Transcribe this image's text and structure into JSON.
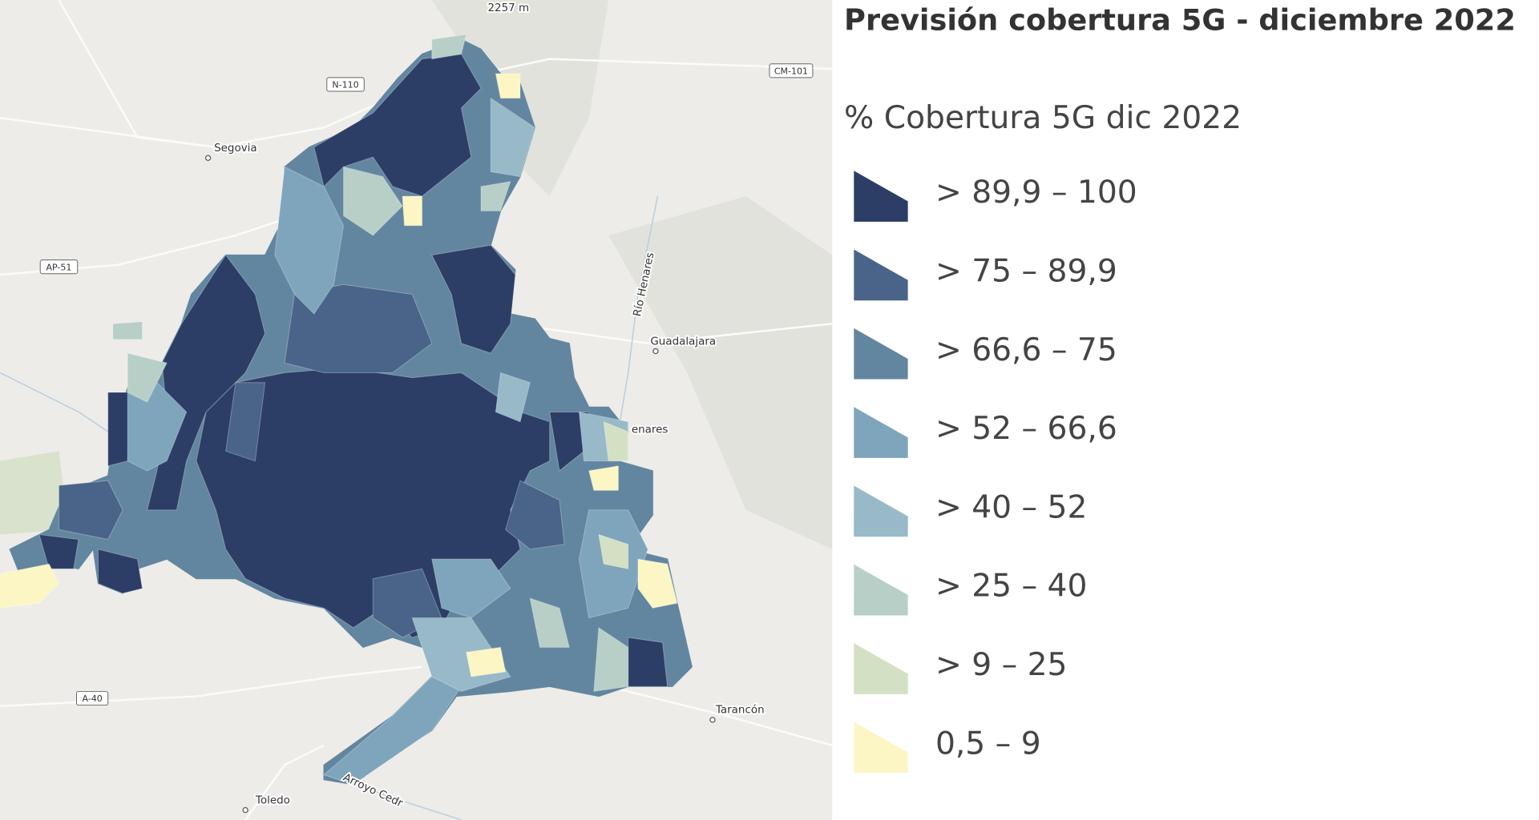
{
  "map": {
    "labels": [
      {
        "text": "2257 m"
      },
      {
        "text": "N-110"
      },
      {
        "text": "CM-101"
      },
      {
        "text": "Segovia"
      },
      {
        "text": "AP-51"
      },
      {
        "text": "Guadalajara"
      },
      {
        "text": "Río Henares"
      },
      {
        "text": "enares"
      },
      {
        "text": "A-40"
      },
      {
        "text": "Tarancón"
      },
      {
        "text": "Toledo"
      },
      {
        "text": "Arroyo Cedr"
      }
    ]
  },
  "legend": {
    "title": "Previsión cobertura 5G - diciembre 2022",
    "subtitle": "% Cobertura 5G dic 2022",
    "items": [
      {
        "label": "> 89,9 – 100",
        "color": "#2c3e66"
      },
      {
        "label": "> 75 – 89,9",
        "color": "#4a6489"
      },
      {
        "label": "> 66,6 – 75",
        "color": "#6386a0"
      },
      {
        "label": "> 52 – 66,6",
        "color": "#7ea5bb"
      },
      {
        "label": "> 40 – 52",
        "color": "#97b9c8"
      },
      {
        "label": "> 25 – 40",
        "color": "#b7cfc7"
      },
      {
        "label": "> 9 – 25",
        "color": "#d4e0c4"
      },
      {
        "label": "0,5 – 9",
        "color": "#fbf6c4"
      }
    ]
  }
}
